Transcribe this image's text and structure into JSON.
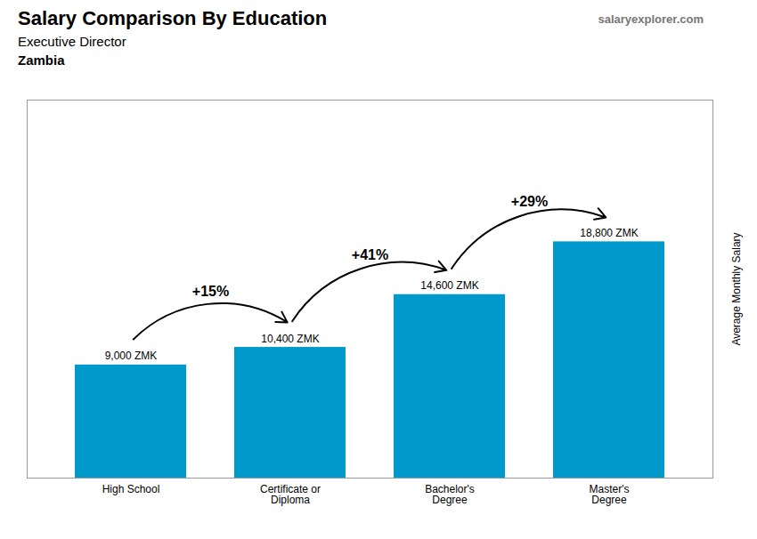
{
  "chart_data": {
    "type": "bar",
    "title": "Salary Comparison By Education",
    "subtitle": [
      "Executive Director",
      "Zambia"
    ],
    "annotations": [
      "salaryexplorer.com"
    ],
    "ylabel": "Average Monthly Salary",
    "categories": [
      "High School",
      "Certificate or\nDiploma",
      "Bachelor's\nDegree",
      "Master's\nDegree"
    ],
    "values": [
      9000,
      10400,
      14600,
      18800
    ],
    "value_labels": [
      "9,000 ZMK",
      "10,400 ZMK",
      "14,600 ZMK",
      "18,800 ZMK"
    ],
    "data_labels": true,
    "change_labels": [
      "+15%",
      "+41%",
      "+29%"
    ],
    "color": "#0099cc",
    "ylim": [
      0,
      30080
    ],
    "yticks": [],
    "tick_labels": "x"
  }
}
